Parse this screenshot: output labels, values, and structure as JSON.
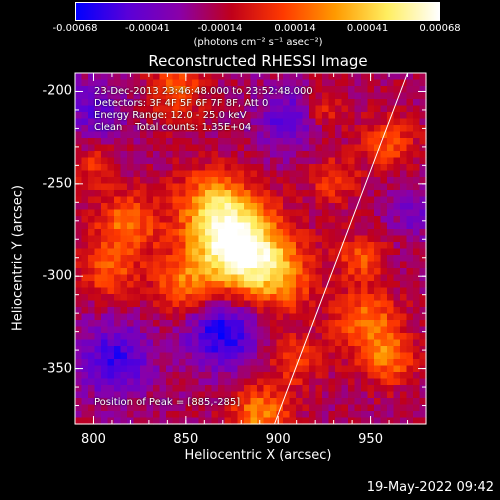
{
  "chart_data": {
    "type": "heatmap",
    "title": "Reconstructed RHESSI Image",
    "xlabel": "Heliocentric X (arcsec)",
    "ylabel": "Heliocentric Y (arcsec)",
    "xlim": [
      790,
      980
    ],
    "ylim": [
      -380,
      -190
    ],
    "x_ticks": [
      "800",
      "850",
      "900",
      "950"
    ],
    "x_tick_values": [
      800,
      850,
      900,
      950
    ],
    "y_ticks": [
      "-200",
      "-250",
      "-300",
      "-350"
    ],
    "y_tick_values": [
      -200,
      -250,
      -300,
      -350
    ],
    "colorbar": {
      "ticks": [
        "-0.00068",
        "-0.00041",
        "-0.00014",
        "0.00014",
        "0.00041",
        "0.00068"
      ],
      "tick_values": [
        -0.00068,
        -0.00041,
        -0.00014,
        0.00014,
        0.00041,
        0.00068
      ],
      "units": "(photons cm⁻² s⁻¹ asec⁻²)",
      "colormap": [
        "#0000ff",
        "#5a00d8",
        "#8a00a8",
        "#c0001a",
        "#ff3a00",
        "#ff9a00",
        "#ffee60",
        "#ffffff"
      ]
    },
    "annotations": [
      "23-Dec-2013 23:46:48.000 to 23:52:48.000",
      "Detectors: 3F 4F 5F 6F 7F 8F, Att 0",
      "Energy Range: 12.0 - 25.0 keV",
      "Clean    Total counts: 1.35E+04"
    ],
    "peak_label": "Position of Peak = [885,-285]",
    "peak": [
      885,
      -285
    ],
    "sources": [
      {
        "x": 878,
        "y": -285,
        "intensity": 1.0,
        "sigma": 16
      },
      {
        "x": 865,
        "y": -262,
        "intensity": 0.55,
        "sigma": 14
      },
      {
        "x": 900,
        "y": -300,
        "intensity": 0.45,
        "sigma": 14
      },
      {
        "x": 818,
        "y": -272,
        "intensity": 0.45,
        "sigma": 12
      },
      {
        "x": 808,
        "y": -298,
        "intensity": 0.35,
        "sigma": 10
      },
      {
        "x": 848,
        "y": -305,
        "intensity": 0.4,
        "sigma": 12
      },
      {
        "x": 890,
        "y": -375,
        "intensity": 0.5,
        "sigma": 11
      },
      {
        "x": 948,
        "y": -325,
        "intensity": 0.45,
        "sigma": 12
      },
      {
        "x": 960,
        "y": -345,
        "intensity": 0.4,
        "sigma": 10
      },
      {
        "x": 945,
        "y": -290,
        "intensity": 0.35,
        "sigma": 9
      },
      {
        "x": 960,
        "y": -228,
        "intensity": 0.35,
        "sigma": 10
      },
      {
        "x": 845,
        "y": -200,
        "intensity": 0.4,
        "sigma": 10
      },
      {
        "x": 930,
        "y": -248,
        "intensity": 0.3,
        "sigma": 9
      },
      {
        "x": 800,
        "y": -240,
        "intensity": 0.25,
        "sigma": 8
      },
      {
        "x": 925,
        "y": -210,
        "intensity": 0.25,
        "sigma": 8
      },
      {
        "x": 910,
        "y": -345,
        "intensity": 0.3,
        "sigma": 10
      },
      {
        "x": 870,
        "y": -330,
        "intensity": -0.55,
        "sigma": 14
      },
      {
        "x": 812,
        "y": -345,
        "intensity": -0.45,
        "sigma": 14
      },
      {
        "x": 905,
        "y": -215,
        "intensity": -0.35,
        "sigma": 12
      },
      {
        "x": 800,
        "y": -210,
        "intensity": -0.3,
        "sigma": 12
      },
      {
        "x": 975,
        "y": -265,
        "intensity": -0.25,
        "sigma": 10
      }
    ],
    "limb_line": [
      [
        898,
        -380
      ],
      [
        970,
        -190
      ]
    ]
  },
  "footer": "19-May-2022 09:42"
}
